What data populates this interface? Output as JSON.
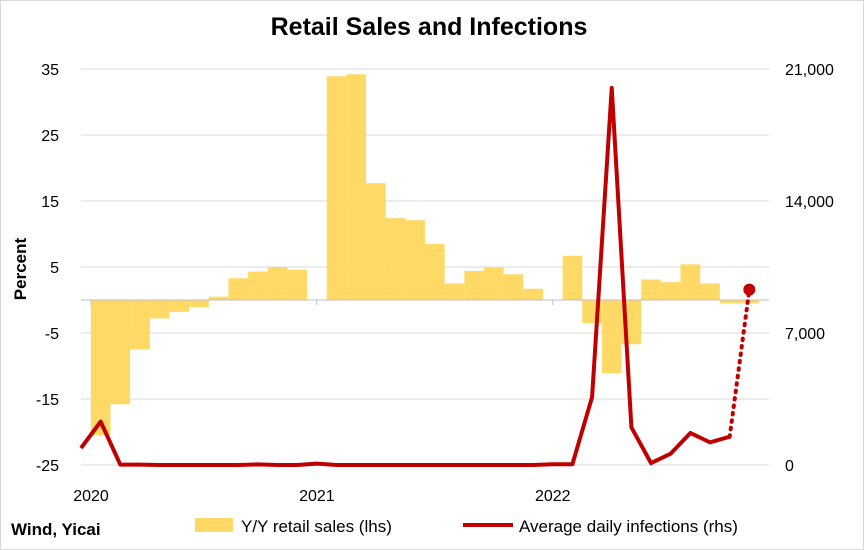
{
  "chart_data": {
    "type": "bar",
    "title": "Retail Sales and Infections",
    "ylabel": "Percent",
    "y2label": "",
    "source": "Wind, Yicai",
    "ylim": [
      -25,
      35
    ],
    "yticks": [
      "35",
      "25",
      "15",
      "5",
      "-5",
      "-15",
      "-25"
    ],
    "yticks_values": [
      35,
      25,
      15,
      5,
      -5,
      -15,
      -25
    ],
    "y2lim": [
      0,
      21000
    ],
    "y2ticks": [
      "21,000",
      "14,000",
      "7,000",
      "0"
    ],
    "y2ticks_values": [
      21000,
      14000,
      7000,
      0
    ],
    "x_month_range": [
      0,
      35
    ],
    "xticks": [
      {
        "label": "2020",
        "month": 0
      },
      {
        "label": "2021",
        "month": 12
      },
      {
        "label": "2022",
        "month": 24
      }
    ],
    "grid": true,
    "legend": "bottom",
    "series": [
      {
        "name": "Y/Y retail sales (lhs)",
        "type": "bar",
        "axis": "left",
        "color": "#ffd966",
        "x": [
          1,
          2,
          3,
          4,
          5,
          6,
          7,
          8,
          9,
          10,
          11,
          13,
          14,
          15,
          16,
          17,
          18,
          19,
          20,
          21,
          22,
          23,
          25,
          26,
          27,
          28,
          29,
          30,
          31,
          32,
          33,
          34
        ],
        "values": [
          -20.5,
          -15.8,
          -7.5,
          -2.8,
          -1.8,
          -1.1,
          0.5,
          3.3,
          4.3,
          5.0,
          4.6,
          33.9,
          34.2,
          17.7,
          12.4,
          12.1,
          8.5,
          2.5,
          4.4,
          4.9,
          3.9,
          1.7,
          6.7,
          -3.5,
          -11.1,
          -6.7,
          3.1,
          2.7,
          5.4,
          2.5,
          -0.5,
          -0.5
        ]
      },
      {
        "name": "Average daily infections (rhs)",
        "type": "line",
        "axis": "right",
        "color": "#c00000",
        "x": [
          0,
          1,
          2,
          3,
          4,
          5,
          6,
          7,
          8,
          9,
          10,
          11,
          12,
          13,
          14,
          15,
          16,
          17,
          18,
          19,
          20,
          21,
          22,
          23,
          24,
          25,
          26,
          27,
          28,
          29,
          30,
          31,
          32,
          33
        ],
        "values": [
          900,
          2300,
          20,
          20,
          0,
          0,
          0,
          0,
          0,
          30,
          0,
          0,
          70,
          0,
          0,
          0,
          0,
          0,
          0,
          0,
          0,
          0,
          0,
          0,
          40,
          40,
          3600,
          20000,
          2000,
          100,
          600,
          1700,
          1200,
          1500
        ]
      },
      {
        "name": "",
        "type": "dotted-line",
        "axis": "right",
        "color": "#c00000",
        "x": [
          33,
          34
        ],
        "values": [
          1500,
          9300
        ]
      }
    ]
  }
}
